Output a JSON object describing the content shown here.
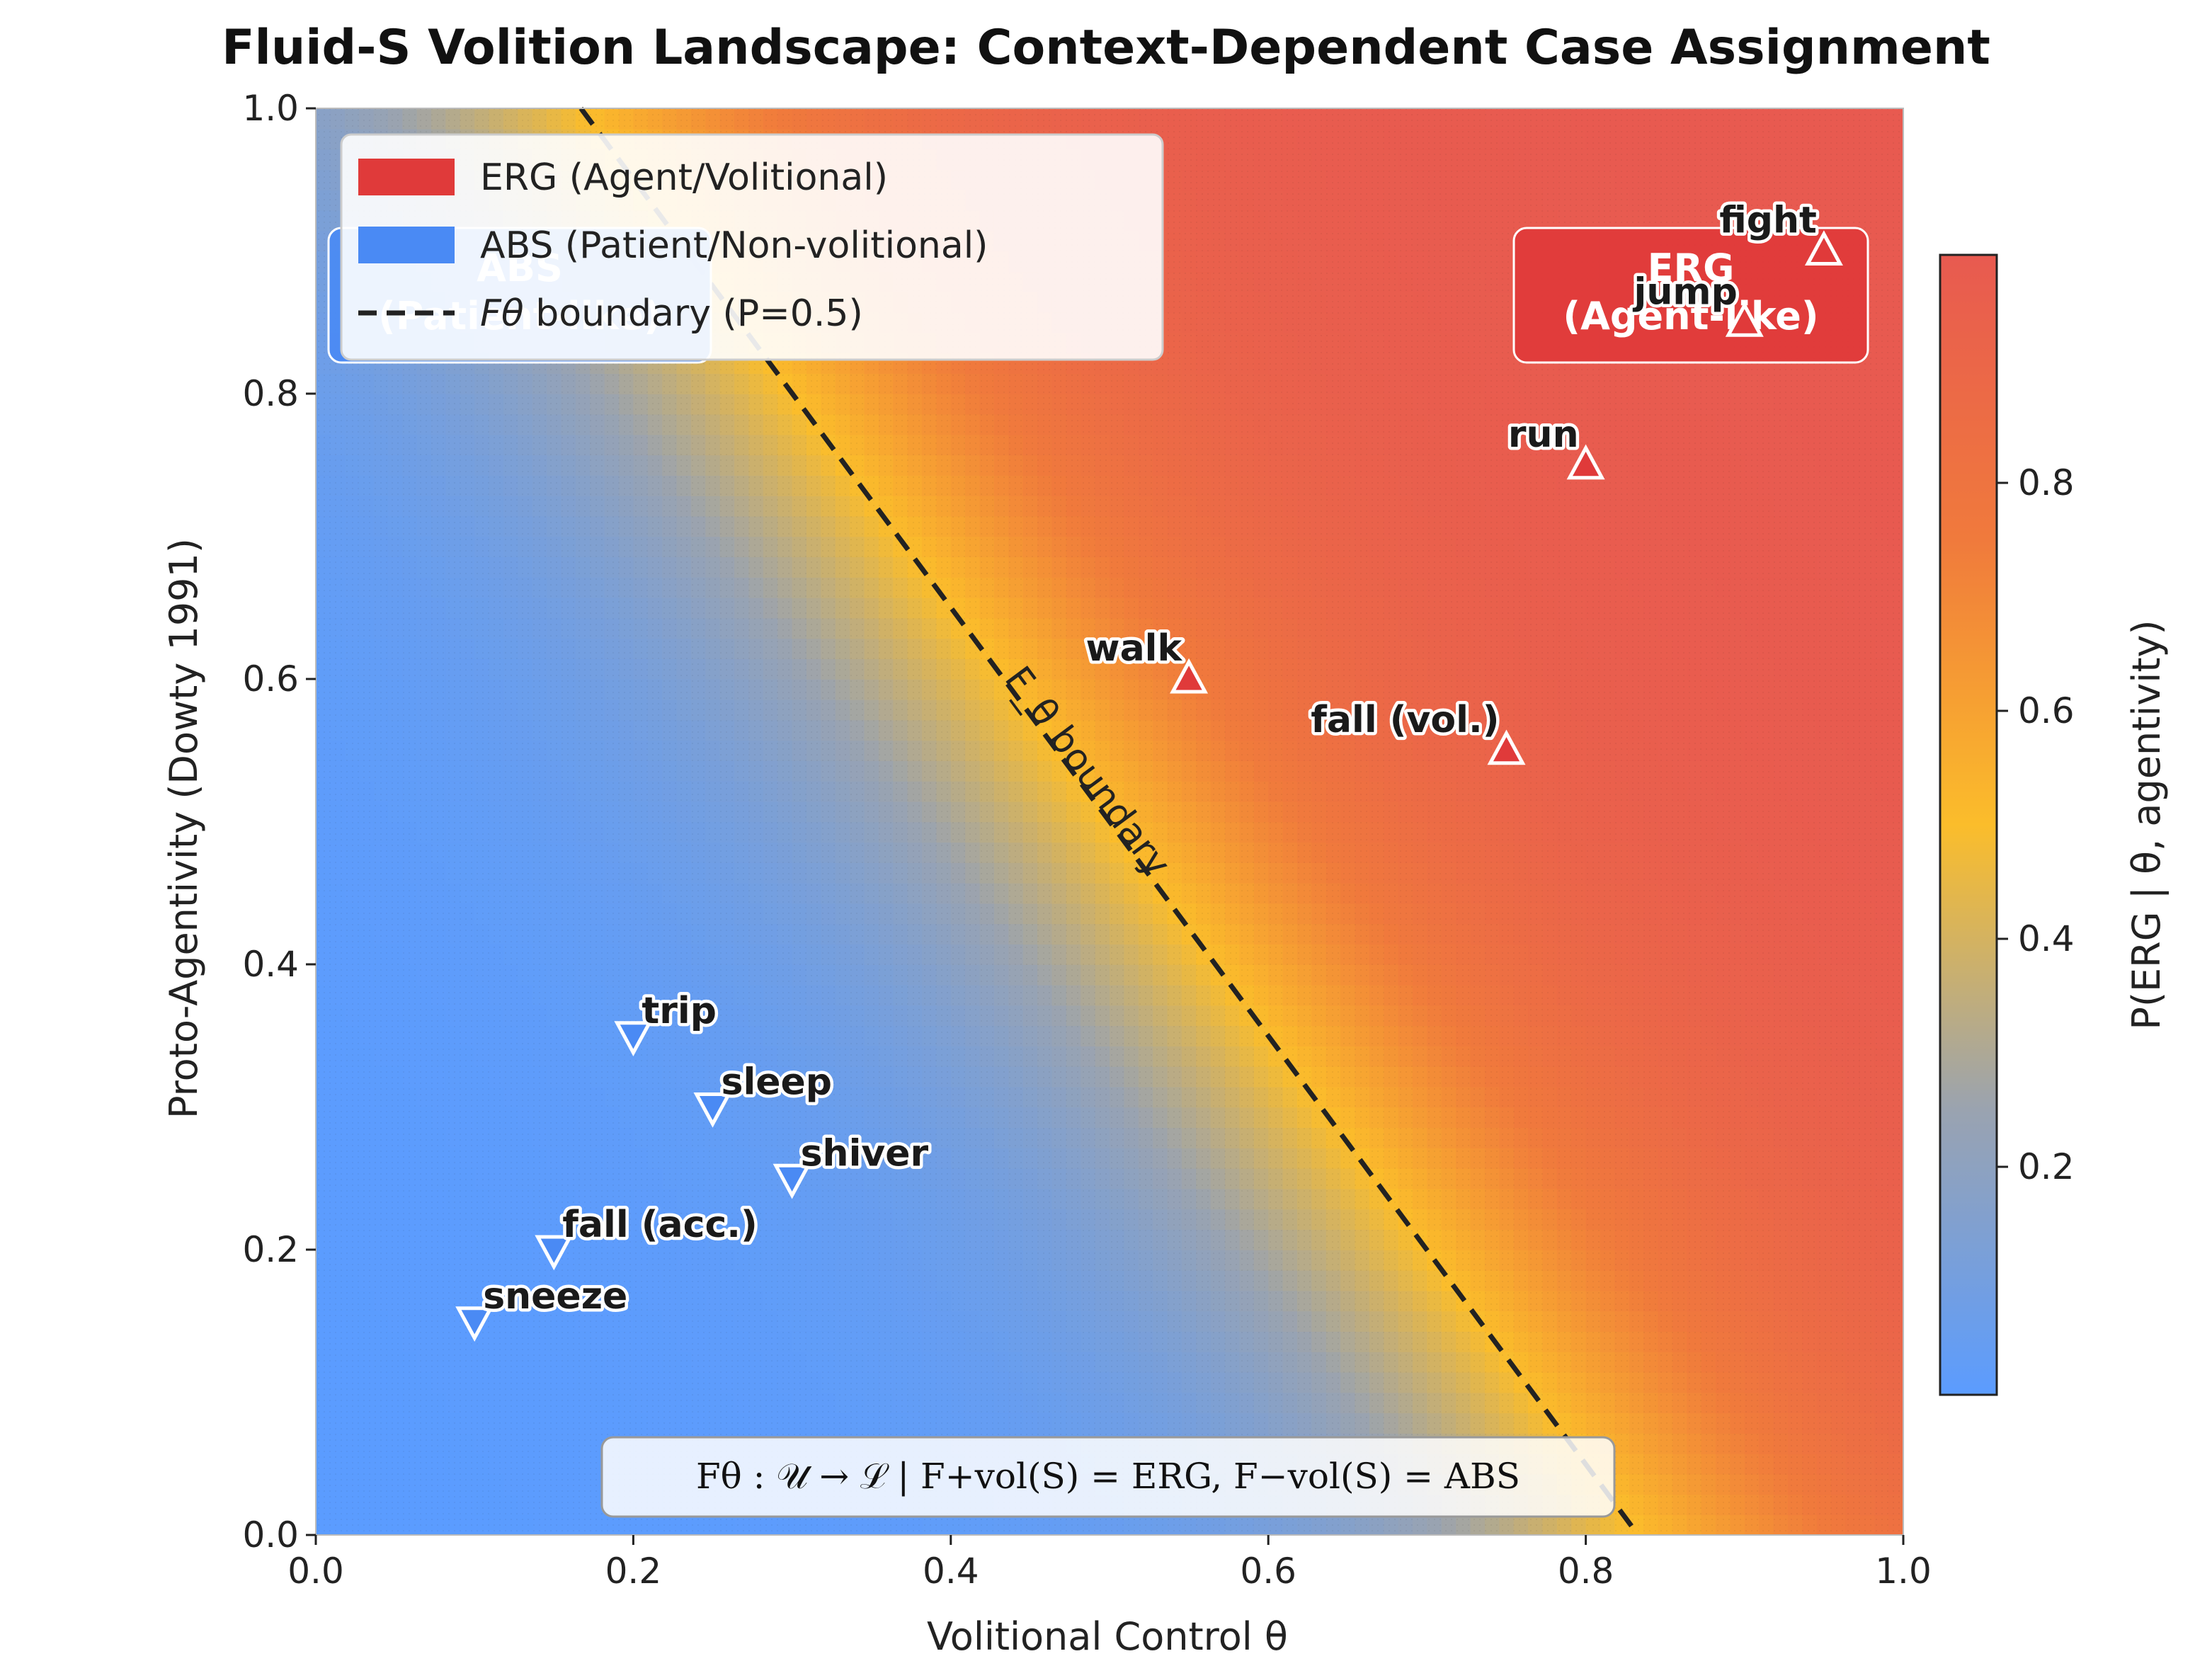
{
  "chart_data": {
    "type": "heatmap",
    "title": "Fluid-S Volition Landscape: Context-Dependent Case Assignment",
    "xlabel": "Volitional Control θ",
    "ylabel": "Proto-Agentivity (Dowty 1991)",
    "xlim": [
      0,
      1
    ],
    "ylim": [
      0,
      1
    ],
    "x_ticks": [
      "0.0",
      "0.2",
      "0.4",
      "0.6",
      "0.8",
      "1.0"
    ],
    "y_ticks": [
      "0.0",
      "0.2",
      "0.4",
      "0.6",
      "0.8",
      "1.0"
    ],
    "colorbar": {
      "label": "P(ERG | θ, agentivity)",
      "ticks": [
        {
          "value": 0.2,
          "label": "0.2"
        },
        {
          "value": 0.4,
          "label": "0.4"
        },
        {
          "value": 0.6,
          "label": "0.6"
        },
        {
          "value": 0.8,
          "label": "0.8"
        }
      ],
      "range": [
        0.0,
        1.0
      ],
      "colors": [
        "#5b9cff",
        "#9aa3b0",
        "#fbbd2b",
        "#f07a3c",
        "#e85a50"
      ]
    },
    "boundary": {
      "label": "F_θ boundary",
      "p": 0.5,
      "points": [
        {
          "x": 0.167,
          "y": 1.0
        },
        {
          "x": 0.833,
          "y": 0.0
        }
      ]
    },
    "points": [
      {
        "label": "fight",
        "x": 0.95,
        "y": 0.9,
        "case": "ERG"
      },
      {
        "label": "jump",
        "x": 0.9,
        "y": 0.85,
        "case": "ERG"
      },
      {
        "label": "run",
        "x": 0.8,
        "y": 0.75,
        "case": "ERG"
      },
      {
        "label": "walk",
        "x": 0.55,
        "y": 0.6,
        "case": "ERG"
      },
      {
        "label": "fall (vol.)",
        "x": 0.75,
        "y": 0.55,
        "case": "ERG"
      },
      {
        "label": "trip",
        "x": 0.2,
        "y": 0.35,
        "case": "ABS"
      },
      {
        "label": "sleep",
        "x": 0.25,
        "y": 0.3,
        "case": "ABS"
      },
      {
        "label": "shiver",
        "x": 0.3,
        "y": 0.25,
        "case": "ABS"
      },
      {
        "label": "fall (acc.)",
        "x": 0.15,
        "y": 0.2,
        "case": "ABS"
      },
      {
        "label": "sneeze",
        "x": 0.1,
        "y": 0.15,
        "case": "ABS"
      }
    ],
    "legend": {
      "placement": "top-left",
      "entries": [
        {
          "label": "ERG (Agent/Volitional)",
          "color": "#e03a3a"
        },
        {
          "label": "ABS (Patient/Non-volitional)",
          "color": "#4a8af4"
        },
        {
          "label": "boundary (P=0.5)",
          "symbol": "Fθ"
        }
      ]
    },
    "regions": [
      {
        "label_lines": [
          "ERG",
          "(Agent-like)"
        ],
        "color": "#e03a3a",
        "placement": "top-right"
      },
      {
        "label_lines": [
          "ABS",
          "(Patient-like)"
        ],
        "color": "#4a8af4",
        "placement": "top-left"
      }
    ],
    "formula": "Fθ : 𝒰 → ℒ | F+vol(S) = ERG, F−vol(S) = ABS",
    "colors": {
      "erg": "#e03a3a",
      "abs": "#4a8af4"
    }
  }
}
